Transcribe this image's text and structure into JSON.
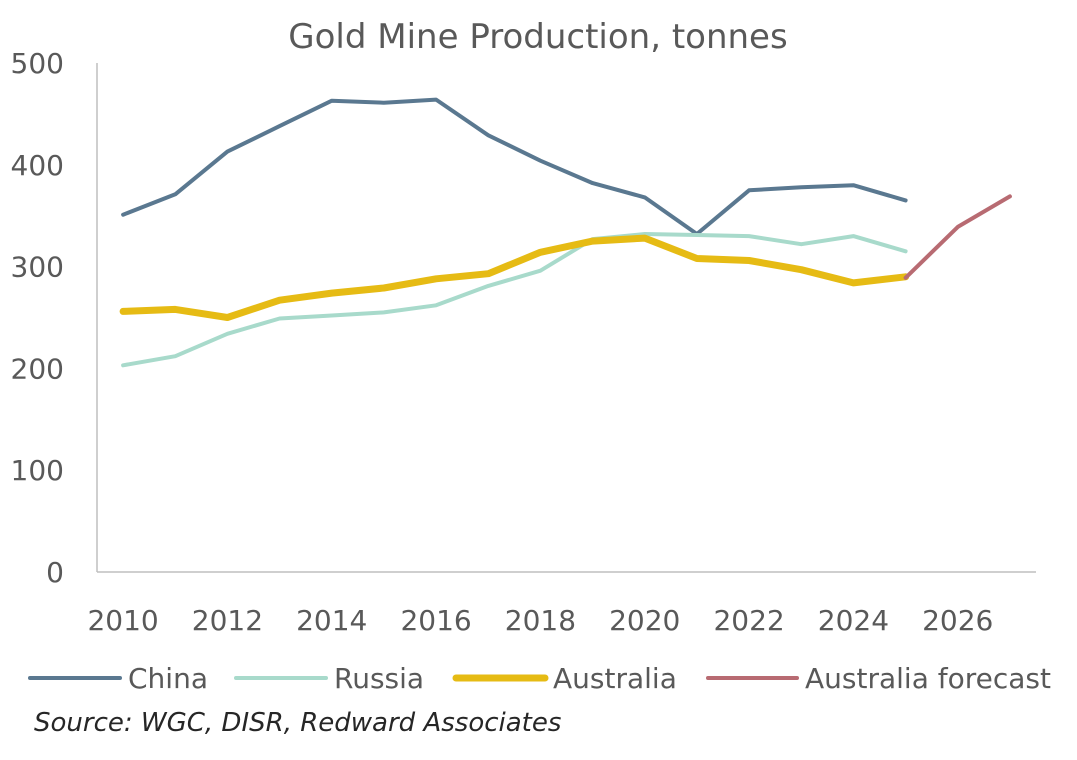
{
  "chart_data": {
    "type": "line",
    "title": "Gold Mine Production, tonnes",
    "xlabel": "",
    "ylabel": "",
    "ylim": [
      0,
      500
    ],
    "xlim": [
      2009.5,
      2027.5
    ],
    "yticks": [
      0,
      100,
      200,
      300,
      400,
      500
    ],
    "xticks": [
      2010,
      2012,
      2014,
      2016,
      2018,
      2020,
      2022,
      2024,
      2026
    ],
    "grid": false,
    "legend": "bottom",
    "series": [
      {
        "name": "China",
        "color": "#5a7890",
        "width": 4,
        "x": [
          2010,
          2011,
          2012,
          2013,
          2014,
          2015,
          2016,
          2017,
          2018,
          2019,
          2020,
          2021,
          2022,
          2023,
          2024,
          2025
        ],
        "values": [
          351,
          371,
          413,
          438,
          463,
          461,
          464,
          429,
          404,
          382,
          368,
          332,
          375,
          378,
          380,
          365
        ]
      },
      {
        "name": "Russia",
        "color": "#a8dacb",
        "width": 4,
        "x": [
          2010,
          2011,
          2012,
          2013,
          2014,
          2015,
          2016,
          2017,
          2018,
          2019,
          2020,
          2021,
          2022,
          2023,
          2024,
          2025
        ],
        "values": [
          203,
          212,
          234,
          249,
          252,
          255,
          262,
          281,
          296,
          327,
          332,
          331,
          330,
          322,
          330,
          315
        ]
      },
      {
        "name": "Australia",
        "color": "#e6bb14",
        "width": 7,
        "x": [
          2010,
          2011,
          2012,
          2013,
          2014,
          2015,
          2016,
          2017,
          2018,
          2019,
          2020,
          2021,
          2022,
          2023,
          2024,
          2025
        ],
        "values": [
          256,
          258,
          250,
          267,
          274,
          279,
          288,
          293,
          314,
          325,
          328,
          308,
          306,
          297,
          284,
          290
        ]
      },
      {
        "name": "Australia forecast",
        "color": "#b86b72",
        "width": 4,
        "x": [
          2025,
          2026,
          2027
        ],
        "values": [
          289,
          339,
          369
        ]
      }
    ]
  },
  "source_note": "Source: WGC, DISR, Redward Associates"
}
